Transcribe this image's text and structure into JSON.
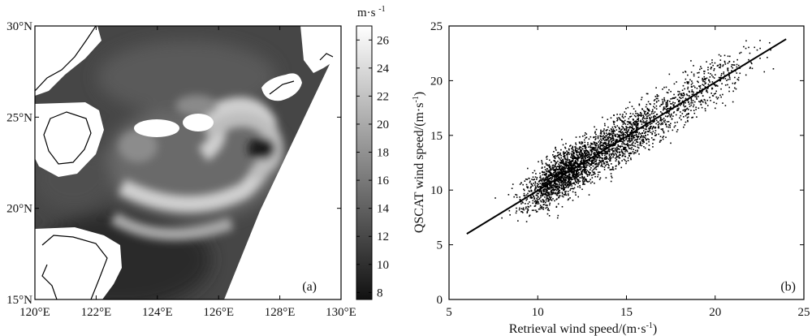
{
  "chart_data": [
    {
      "type": "heatmap",
      "panel_label": "(a)",
      "x_ticks": [
        "120°E",
        "122°E",
        "124°E",
        "126°E",
        "128°E",
        "130°E"
      ],
      "y_ticks": [
        "15°N",
        "20°N",
        "25°N",
        "30°N"
      ],
      "xlim": [
        120,
        130
      ],
      "ylim": [
        15,
        30
      ],
      "colorbar": {
        "unit": "m·s",
        "unit_exponent": "-1",
        "ticks": [
          "8",
          "10",
          "12",
          "14",
          "16",
          "18",
          "20",
          "22",
          "24",
          "26"
        ],
        "range": [
          7.5,
          27
        ]
      },
      "colormap": "grayscale",
      "colors": {
        "low": "#111111",
        "high": "#ffffff",
        "land": "#ffffff",
        "coast": "#000000"
      }
    },
    {
      "type": "scatter",
      "panel_label": "(b)",
      "xlabel": "Retrieval wind speed/(m·s",
      "ylabel": "QSCAT wind speed/(m·s",
      "unit_exponent": "-1",
      "label_close": ")",
      "x_ticks": [
        "5",
        "10",
        "15",
        "20",
        "25"
      ],
      "y_ticks": [
        "0",
        "5",
        "10",
        "15",
        "20",
        "25"
      ],
      "xlim": [
        5,
        25
      ],
      "ylim": [
        0,
        25
      ],
      "fit_line": {
        "x": [
          6,
          24
        ],
        "y": [
          6,
          23.8
        ]
      },
      "points_note_count": 3200,
      "colors": {
        "points": "#000000",
        "line": "#000000"
      }
    }
  ]
}
